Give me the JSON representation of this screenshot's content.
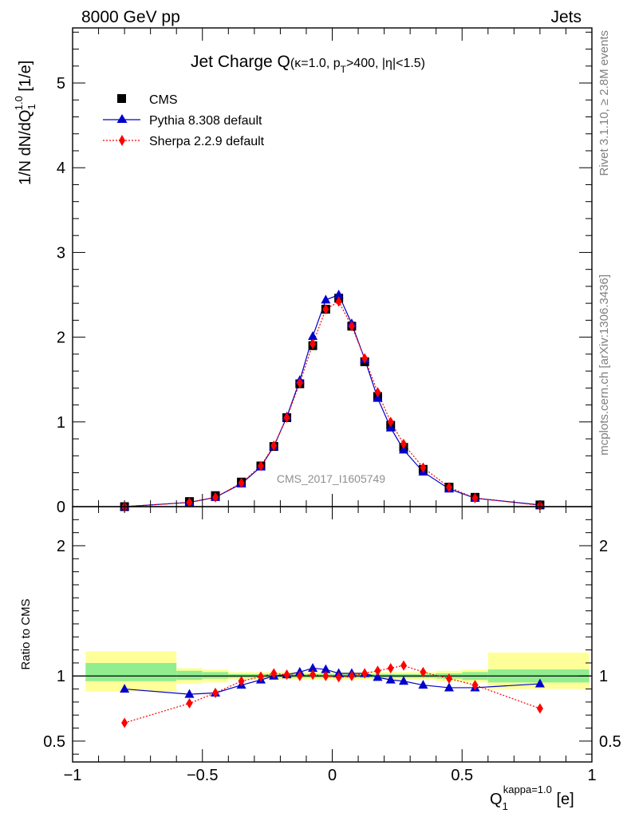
{
  "header": {
    "left": "8000 GeV pp",
    "right": "Jets",
    "side_top": "Rivet 3.1.10, ≥ 2.8M events",
    "side_bottom": "mcplots.cern.ch [arXiv:1306.3436]",
    "watermark": "CMS_2017_I1605749"
  },
  "chart_data": [
    {
      "type": "scatter",
      "title_main": "Jet Charge Q",
      "title_sub": "(κ=1.0, p",
      "title_sub_sub": "T",
      "title_sub_tail": ">400, |η|<1.5)",
      "ylabel_main": "1/N dN/dQ",
      "ylabel_sub": "1",
      "ylabel_sup": "1.0",
      "ylabel_unit": " [1/e]",
      "xlim": [
        -1.0,
        1.0
      ],
      "ylim": [
        0,
        5.65
      ],
      "yticks": [
        0,
        1,
        2,
        3,
        4,
        5
      ],
      "yticklabels": [
        "0",
        "1",
        "2",
        "3",
        "4",
        "5"
      ],
      "x": [
        -0.8,
        -0.55,
        -0.45,
        -0.35,
        -0.275,
        -0.225,
        -0.175,
        -0.125,
        -0.075,
        -0.025,
        0.025,
        0.075,
        0.125,
        0.175,
        0.225,
        0.275,
        0.35,
        0.45,
        0.55,
        0.8
      ],
      "series": [
        {
          "name": "CMS",
          "color": "#000000",
          "marker": "square",
          "values": [
            0.0,
            0.06,
            0.13,
            0.29,
            0.48,
            0.71,
            1.05,
            1.45,
            1.9,
            2.33,
            2.46,
            2.13,
            1.71,
            1.3,
            0.96,
            0.7,
            0.44,
            0.23,
            0.11,
            0.02
          ]
        },
        {
          "name": "Pythia 8.308 default",
          "color": "#0000cc",
          "marker": "triangle",
          "values": [
            0.0,
            0.05,
            0.11,
            0.27,
            0.47,
            0.71,
            1.06,
            1.49,
            2.01,
            2.44,
            2.5,
            2.16,
            1.74,
            1.28,
            0.93,
            0.67,
            0.41,
            0.21,
            0.1,
            0.02
          ]
        },
        {
          "name": "Sherpa 2.2.9 default",
          "color": "#ff0000",
          "marker": "diamond",
          "values": [
            0.0,
            0.05,
            0.11,
            0.28,
            0.48,
            0.72,
            1.05,
            1.46,
            1.92,
            2.33,
            2.42,
            2.13,
            1.75,
            1.35,
            1.0,
            0.74,
            0.46,
            0.23,
            0.1,
            0.015
          ]
        }
      ]
    },
    {
      "type": "scatter",
      "ylabel": "Ratio to CMS",
      "xlabel_main": "Q",
      "xlabel_sub": "1",
      "xlabel_sup": "kappa=1.0",
      "xlabel_unit": " [e]",
      "xlim": [
        -1.0,
        1.0
      ],
      "ylim": [
        0.34,
        2.3
      ],
      "yticks": [
        0.5,
        1,
        2
      ],
      "yticklabels": [
        "0.5",
        "1",
        "2"
      ],
      "xticks": [
        -1,
        -0.5,
        0,
        0.5,
        1
      ],
      "xticklabels": [
        "−1",
        "−0.5",
        "0",
        "0.5",
        "1"
      ],
      "bands": [
        {
          "x0": -0.95,
          "x1": -0.6,
          "inner": [
            0.96,
            1.1
          ],
          "outer": [
            0.88,
            1.19
          ]
        },
        {
          "x0": -0.6,
          "x1": -0.5,
          "inner": [
            0.97,
            1.04
          ],
          "outer": [
            0.94,
            1.06
          ]
        },
        {
          "x0": -0.5,
          "x1": -0.4,
          "inner": [
            0.98,
            1.03
          ],
          "outer": [
            0.95,
            1.05
          ]
        },
        {
          "x0": -0.4,
          "x1": 0.4,
          "inner": [
            0.985,
            1.015
          ],
          "outer": [
            0.97,
            1.03
          ]
        },
        {
          "x0": 0.4,
          "x1": 0.5,
          "inner": [
            0.98,
            1.02
          ],
          "outer": [
            0.96,
            1.04
          ]
        },
        {
          "x0": 0.5,
          "x1": 0.6,
          "inner": [
            0.97,
            1.03
          ],
          "outer": [
            0.95,
            1.05
          ]
        },
        {
          "x0": 0.6,
          "x1": 0.99,
          "inner": [
            0.95,
            1.05
          ],
          "outer": [
            0.9,
            1.18
          ]
        }
      ],
      "band_colors": {
        "inner": "#90ee90",
        "outer": "#ffff99"
      },
      "series": [
        {
          "name": "Pythia 8.308 default",
          "color": "#0000cc",
          "marker": "triangle",
          "values": [
            0.9,
            0.86,
            0.87,
            0.93,
            0.97,
            1.0,
            1.01,
            1.03,
            1.06,
            1.05,
            1.02,
            1.02,
            1.02,
            0.99,
            0.97,
            0.96,
            0.93,
            0.91,
            0.91,
            0.94
          ]
        },
        {
          "name": "Sherpa 2.2.9 default",
          "color": "#ff0000",
          "marker": "diamond",
          "values": [
            0.64,
            0.79,
            0.87,
            0.96,
            0.995,
            1.02,
            1.01,
            1.0,
            1.01,
            1.0,
            0.99,
            1.0,
            1.02,
            1.04,
            1.06,
            1.08,
            1.03,
            0.98,
            0.93,
            0.75
          ]
        }
      ]
    }
  ]
}
